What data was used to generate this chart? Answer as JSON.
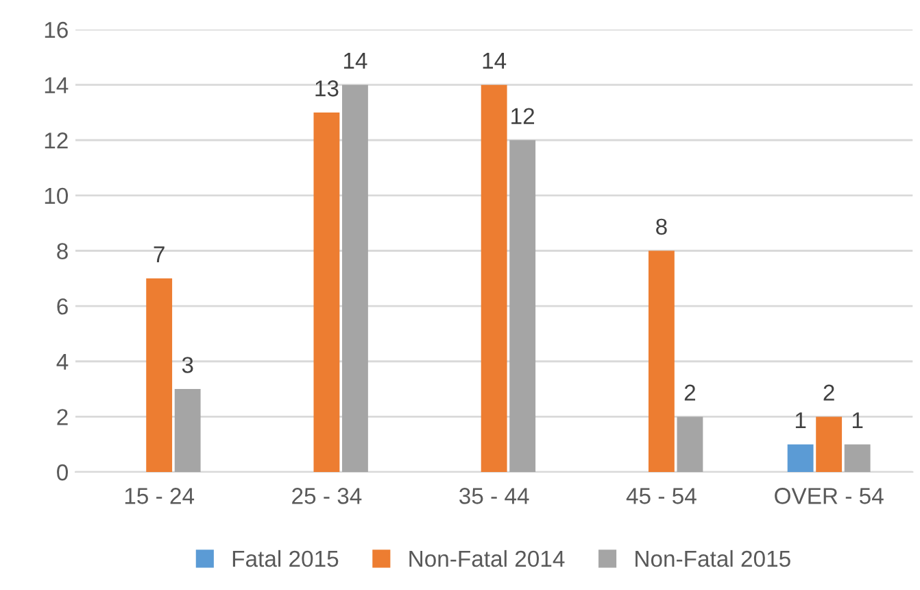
{
  "chart_data": {
    "type": "bar",
    "categories": [
      "15 - 24",
      "25 - 34",
      "35 - 44",
      "45 - 54",
      "OVER - 54"
    ],
    "series": [
      {
        "name": "Fatal 2015",
        "color": "#5b9bd5",
        "values": [
          0,
          0,
          0,
          0,
          1
        ],
        "value_labels": [
          null,
          null,
          null,
          null,
          "1"
        ]
      },
      {
        "name": "Non-Fatal 2014",
        "color": "#ed7d31",
        "values": [
          7,
          13,
          14,
          8,
          2
        ],
        "value_labels": [
          "7",
          "13",
          "14",
          "8",
          "2"
        ]
      },
      {
        "name": "Non-Fatal 2015",
        "color": "#a5a5a5",
        "values": [
          3,
          14,
          12,
          2,
          1
        ],
        "value_labels": [
          "3",
          "14",
          "12",
          "2",
          "1"
        ]
      }
    ],
    "ylim": [
      0,
      16
    ],
    "yticks": [
      0,
      2,
      4,
      6,
      8,
      10,
      12,
      14,
      16
    ],
    "grid": "y",
    "legend": "bottom"
  }
}
